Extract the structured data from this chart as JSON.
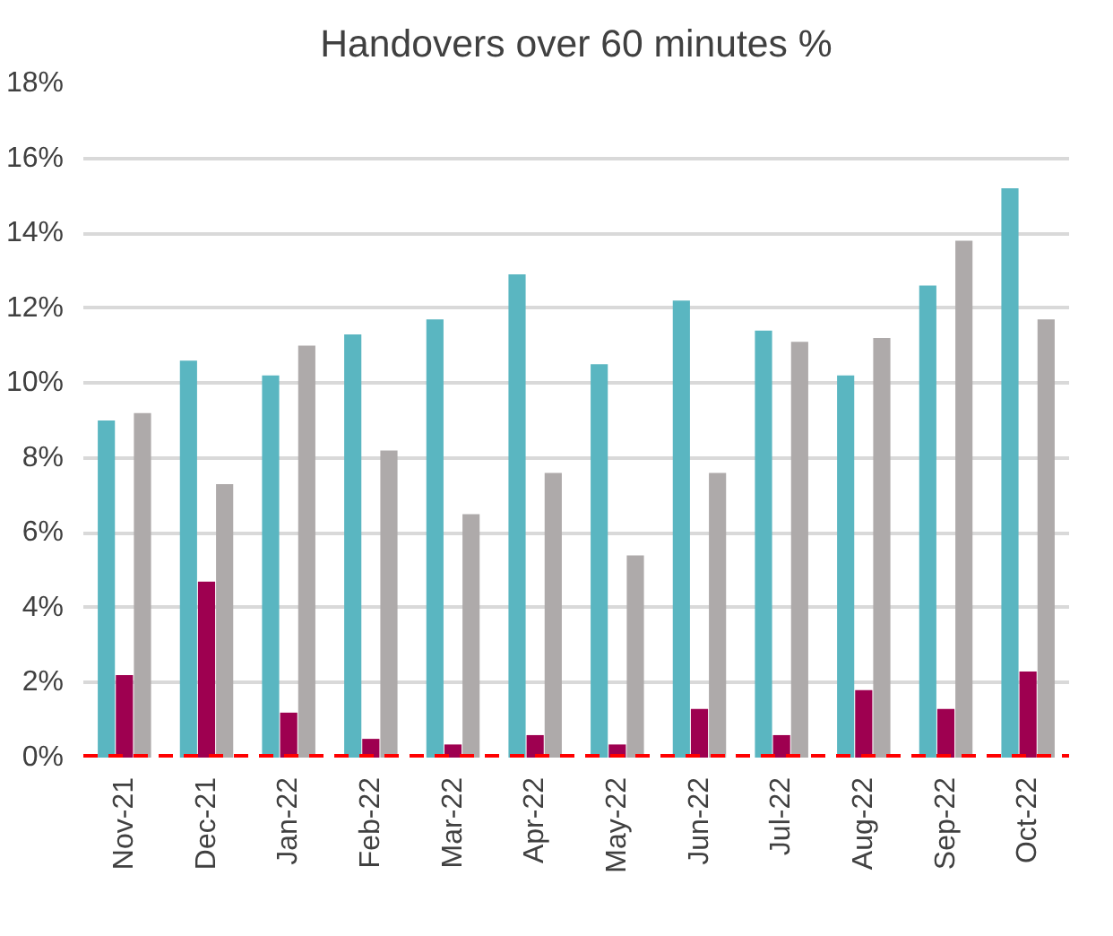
{
  "chart_data": {
    "type": "bar",
    "title": "Handovers over 60 minutes %",
    "categories": [
      "Nov-21",
      "Dec-21",
      "Jan-22",
      "Feb-22",
      "Mar-22",
      "Apr-22",
      "May-22",
      "Jun-22",
      "Jul-22",
      "Aug-22",
      "Sep-22",
      "Oct-22"
    ],
    "series": [
      {
        "color": "#5ab6c1",
        "values": [
          9.0,
          10.6,
          10.2,
          11.3,
          11.7,
          12.9,
          10.5,
          12.2,
          11.4,
          10.2,
          12.6,
          15.2
        ]
      },
      {
        "color": "#9e0050",
        "values": [
          2.2,
          4.7,
          1.2,
          0.5,
          0.35,
          0.6,
          0.35,
          1.3,
          0.6,
          1.8,
          1.3,
          2.3
        ]
      },
      {
        "color": "#aeaaaa",
        "values": [
          9.2,
          7.3,
          11.0,
          8.2,
          6.5,
          7.6,
          5.4,
          7.6,
          11.1,
          11.2,
          13.8,
          11.7
        ]
      }
    ],
    "ylim": [
      0,
      18
    ],
    "yticks": [
      {
        "value": 0,
        "label": "0%"
      },
      {
        "value": 2,
        "label": "2%"
      },
      {
        "value": 4,
        "label": "4%"
      },
      {
        "value": 6,
        "label": "6%"
      },
      {
        "value": 8,
        "label": "8%"
      },
      {
        "value": 10,
        "label": "10%"
      },
      {
        "value": 12,
        "label": "12%"
      },
      {
        "value": 14,
        "label": "14%"
      },
      {
        "value": 16,
        "label": "16%"
      },
      {
        "value": 18,
        "label": "18%"
      }
    ],
    "ref_lines": [
      {
        "axis": "y",
        "value": 0,
        "color": "#ff0000",
        "line_style": "dashed"
      }
    ],
    "grid": "y"
  }
}
